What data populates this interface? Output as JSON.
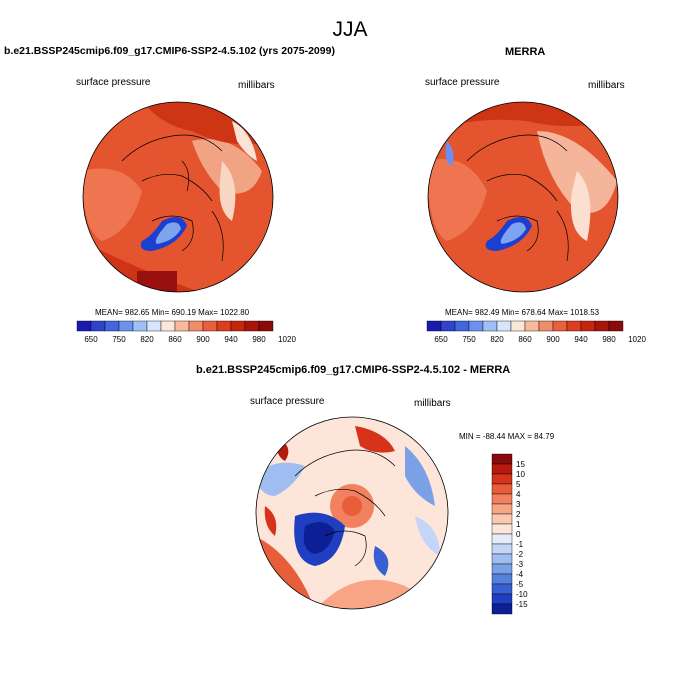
{
  "page": {
    "title": "JJA"
  },
  "panels": [
    {
      "title": "b.e21.BSSP245cmip6.f09_g17.CMIP6-SSP2-4.5.102 (yrs 2075-2099)",
      "left_label": "surface pressure",
      "right_label": "millibars",
      "stats": "MEAN= 982.65  Min= 690.19  Max= 1022.80"
    },
    {
      "title": "MERRA",
      "left_label": "surface pressure",
      "right_label": "millibars",
      "stats": "MEAN= 982.49  Min= 678.64  Max= 1018.53"
    }
  ],
  "horizontal_colorbar": {
    "labels": [
      "650",
      "750",
      "820",
      "860",
      "900",
      "940",
      "980",
      "1020"
    ],
    "colors": [
      "#1a1ab0",
      "#2f43cc",
      "#4068dd",
      "#6a92ee",
      "#9fc0f6",
      "#d6e5fb",
      "#fbe7d8",
      "#f9b99a",
      "#f28d6a",
      "#e9603d",
      "#dc3d1c",
      "#c7250d",
      "#a9150a",
      "#8a0b0b"
    ]
  },
  "difference_panel": {
    "title": "b.e21.BSSP245cmip6.f09_g17.CMIP6-SSP2-4.5.102 - MERRA",
    "left_label": "surface pressure",
    "right_label": "millibars",
    "stats": "MIN = -88.44 MAX =  84.79",
    "colorbar": {
      "labels": [
        "15",
        "10",
        "5",
        "4",
        "3",
        "2",
        "1",
        "0",
        "-1",
        "-2",
        "-3",
        "-4",
        "-5",
        "-10",
        "-15"
      ],
      "colors": [
        "#8a0b0b",
        "#b51a0d",
        "#d6331a",
        "#e85d3a",
        "#f2825f",
        "#f7a585",
        "#fbc9b0",
        "#fde6d9",
        "#e3ecfb",
        "#c3d6f7",
        "#9fbdf0",
        "#7aa0e8",
        "#5581dd",
        "#3760d0",
        "#1f3fc0",
        "#0d1f95"
      ]
    }
  }
}
